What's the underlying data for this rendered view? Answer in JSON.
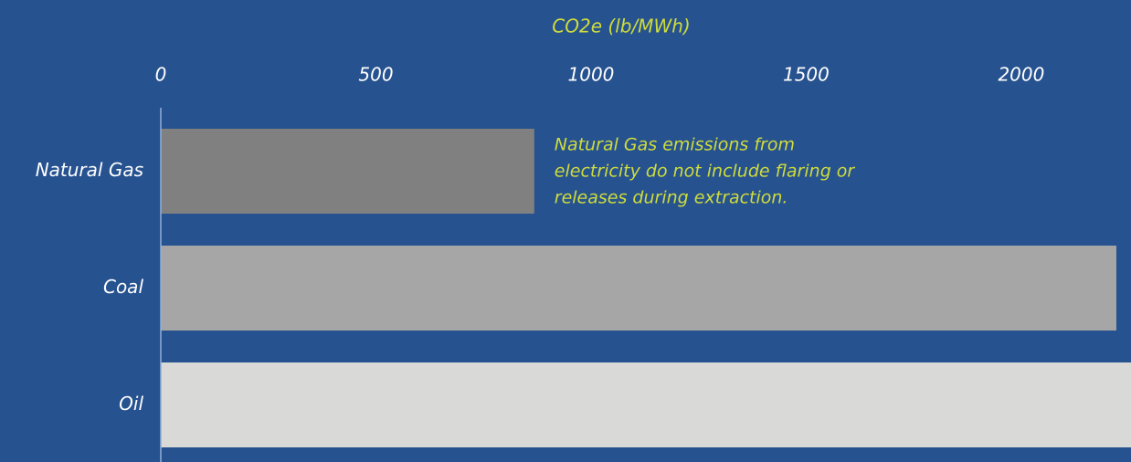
{
  "chart_data": {
    "type": "barh",
    "xlabel": "CO2e (lb/MWh)",
    "categories": [
      "Natural Gas",
      "Coal",
      "Oil"
    ],
    "values": [
      868,
      2221,
      2255
    ],
    "colors": [
      "#808080",
      "#a6a6a6",
      "#d9d9d7"
    ],
    "xlim": [
      0,
      2255
    ],
    "xticks": [
      0,
      500,
      1000,
      1500,
      2000
    ],
    "annotation": [
      "Natural Gas emissions from",
      "electricity do not include flaring or",
      "releases during extraction."
    ],
    "grid": false
  }
}
